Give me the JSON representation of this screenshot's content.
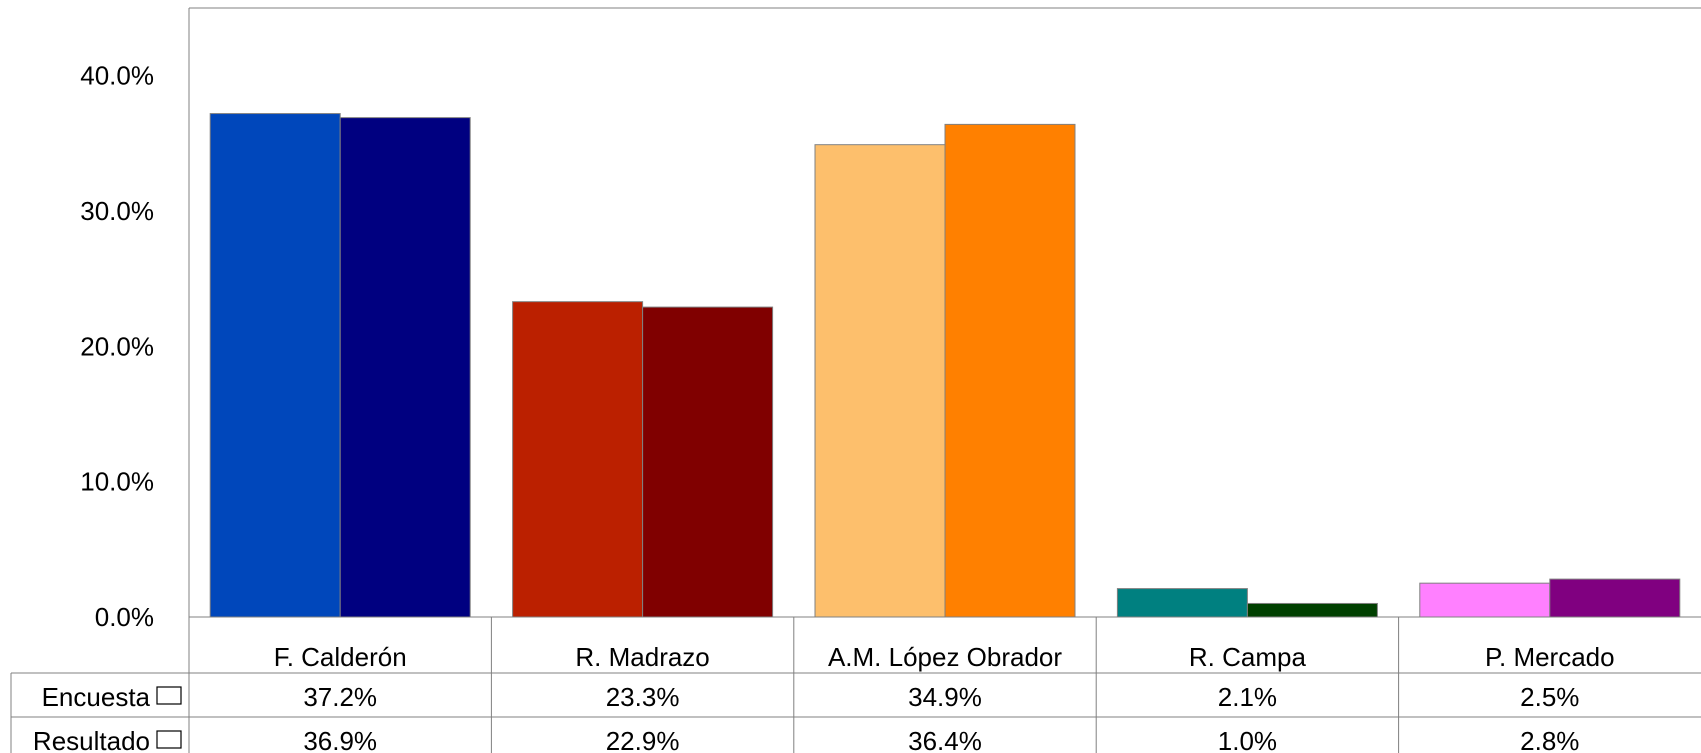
{
  "chart_data": {
    "type": "bar",
    "categories": [
      "F. Calderón",
      "R. Madrazo",
      "A.M. López Obrador",
      "R. Campa",
      "P. Mercado"
    ],
    "series": [
      {
        "name": "Encuesta",
        "values": [
          37.2,
          23.3,
          34.9,
          2.1,
          2.5
        ],
        "labels": [
          "37.2%",
          "23.3%",
          "34.9%",
          "2.1%",
          "2.5%"
        ],
        "colors": [
          "#0047BB",
          "#BB2000",
          "#FDBF6C",
          "#008080",
          "#FF80FF"
        ]
      },
      {
        "name": "Resultado",
        "values": [
          36.9,
          22.9,
          36.4,
          1.0,
          2.8
        ],
        "labels": [
          "36.9%",
          "22.9%",
          "36.4%",
          "1.0%",
          "2.8%"
        ],
        "colors": [
          "#000080",
          "#800000",
          "#FF8000",
          "#004000",
          "#800080"
        ]
      }
    ],
    "ylim": [
      0,
      45
    ],
    "yticks": [
      0,
      10,
      20,
      30,
      40
    ],
    "ytick_labels": [
      "0.0%",
      "10.0%",
      "20.0%",
      "30.0%",
      "40.0%"
    ],
    "legend": "data-table",
    "grid": false,
    "title": "",
    "xlabel": "",
    "ylabel": ""
  }
}
